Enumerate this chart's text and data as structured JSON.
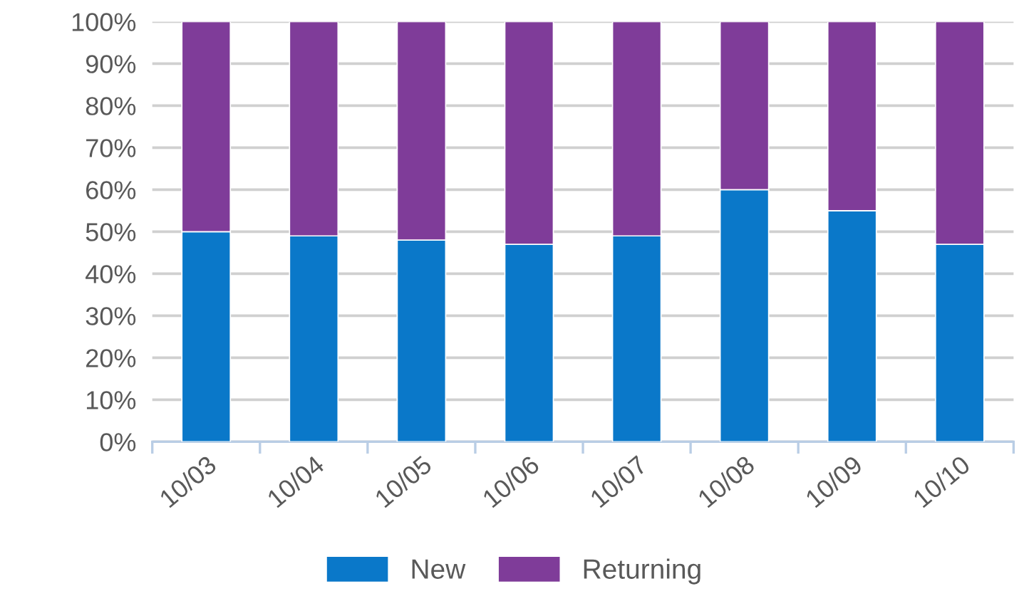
{
  "chart_data": {
    "type": "bar",
    "stacked": true,
    "categories": [
      "10/03",
      "10/04",
      "10/05",
      "10/06",
      "10/07",
      "10/08",
      "10/09",
      "10/10"
    ],
    "series": [
      {
        "name": "New",
        "color": "#0a78c9",
        "values": [
          50,
          49,
          48,
          47,
          49,
          60,
          55,
          47
        ]
      },
      {
        "name": "Returning",
        "color": "#7f3c99",
        "values": [
          50,
          51,
          52,
          53,
          51,
          40,
          45,
          53
        ]
      }
    ],
    "ylim": [
      0,
      100
    ],
    "yticks": [
      {
        "value": 0,
        "label": "0%"
      },
      {
        "value": 10,
        "label": "10%"
      },
      {
        "value": 20,
        "label": "20%"
      },
      {
        "value": 30,
        "label": "30%"
      },
      {
        "value": 40,
        "label": "40%"
      },
      {
        "value": 50,
        "label": "50%"
      },
      {
        "value": 60,
        "label": "60%"
      },
      {
        "value": 70,
        "label": "70%"
      },
      {
        "value": 80,
        "label": "80%"
      },
      {
        "value": 90,
        "label": "90%"
      },
      {
        "value": 100,
        "label": "100%"
      }
    ],
    "grid": "y",
    "legend": "bottom"
  }
}
